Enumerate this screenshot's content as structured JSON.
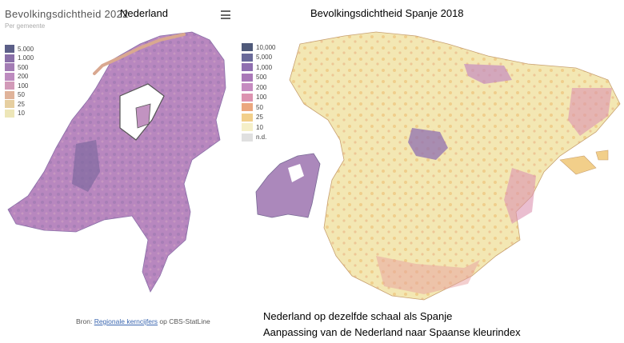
{
  "left_panel": {
    "title": "Bevolkingsdichtheid 2022",
    "subtitle": "Per gemeente",
    "country_label": "Nederland",
    "menu_icon": "hamburger-menu-icon",
    "legend": [
      {
        "label": "5.000",
        "color": "#5c5f88"
      },
      {
        "label": "1.000",
        "color": "#8a6fa8"
      },
      {
        "label": "500",
        "color": "#a37cb4"
      },
      {
        "label": "200",
        "color": "#bd8bbf"
      },
      {
        "label": "100",
        "color": "#d29ab8"
      },
      {
        "label": "50",
        "color": "#e0b39a"
      },
      {
        "label": "25",
        "color": "#e6cfa0"
      },
      {
        "label": "10",
        "color": "#ede6b8"
      }
    ],
    "source_prefix": "Bron: ",
    "source_link": "Regionale kerncijfers",
    "source_suffix": " op CBS-StatLine"
  },
  "right_panel": {
    "title": "Bevolkingsdichtheid Spanje 2018",
    "legend": [
      {
        "label": "10,000",
        "color": "#4f5a7a"
      },
      {
        "label": "5,000",
        "color": "#6a6a9a"
      },
      {
        "label": "1,000",
        "color": "#8f6fb0"
      },
      {
        "label": "500",
        "color": "#a978b8"
      },
      {
        "label": "200",
        "color": "#c58bc0"
      },
      {
        "label": "100",
        "color": "#dc93b0"
      },
      {
        "label": "50",
        "color": "#eba77e"
      },
      {
        "label": "25",
        "color": "#f2cf8a"
      },
      {
        "label": "10",
        "color": "#f5efc8"
      },
      {
        "label": "n.d.",
        "color": "#e0e0e0"
      }
    ]
  },
  "notes": {
    "line1": "Nederland op dezelfde schaal als Spanje",
    "line2": "Aanpassing van de Nederland naar Spaanse kleurindex"
  }
}
